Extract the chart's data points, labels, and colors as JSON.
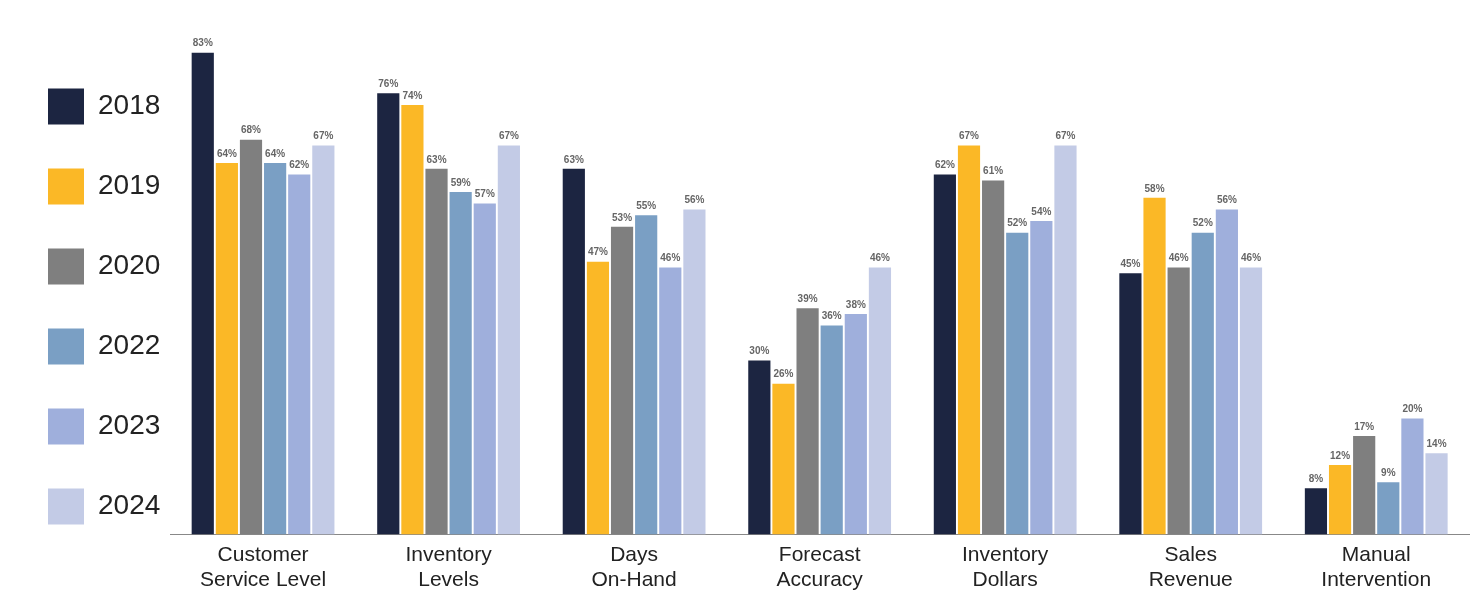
{
  "chart_data": {
    "type": "bar",
    "categories": [
      "Customer Service Level",
      "Inventory Levels",
      "Days On-Hand",
      "Forecast Accuracy",
      "Inventory Dollars",
      "Sales Revenue",
      "Manual Intervention"
    ],
    "grid": false,
    "legend": "left",
    "tick_labels": "x",
    "series": [
      {
        "name": "2018",
        "color": "#1c2541",
        "values": [
          83,
          76,
          63,
          30,
          62,
          45,
          8
        ],
        "value_labels": [
          "83%",
          "76%",
          "63%",
          "30%",
          "62%",
          "45%",
          "8%"
        ]
      },
      {
        "name": "2019",
        "color": "#fbb826",
        "values": [
          64,
          74,
          47,
          26,
          67,
          58,
          12
        ],
        "value_labels": [
          "64%",
          "74%",
          "47%",
          "26%",
          "67%",
          "58%",
          "12%"
        ]
      },
      {
        "name": "2020",
        "color": "#7f7f7f",
        "values": [
          68,
          63,
          53,
          39,
          61,
          46,
          17
        ],
        "value_labels": [
          "68%",
          "63%",
          "53%",
          "39%",
          "61%",
          "46%",
          "17%"
        ]
      },
      {
        "name": "2022",
        "color": "#7a9fc4",
        "values": [
          64,
          59,
          55,
          36,
          52,
          52,
          9
        ],
        "value_labels": [
          "64%",
          "59%",
          "55%",
          "36%",
          "52%",
          "52%",
          "9%"
        ]
      },
      {
        "name": "2023",
        "color": "#9fafdc",
        "values": [
          62,
          57,
          46,
          38,
          54,
          56,
          20
        ],
        "value_labels": [
          "62%",
          "57%",
          "46%",
          "38%",
          "54%",
          "56%",
          "20%"
        ]
      },
      {
        "name": "2024",
        "color": "#c3cbe6",
        "values": [
          67,
          67,
          56,
          46,
          67,
          46,
          14
        ],
        "value_labels": [
          "67%",
          "67%",
          "56%",
          "46%",
          "67%",
          "46%",
          "14%"
        ]
      }
    ]
  }
}
